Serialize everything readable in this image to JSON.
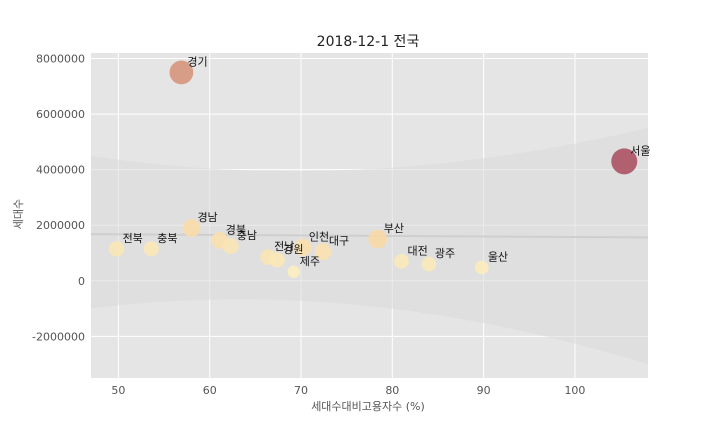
{
  "chart_data": {
    "type": "scatter",
    "title": "2018-12-1 전국",
    "xlabel": "세대수대비고용자수 (%)",
    "ylabel": "세대수",
    "xlim": [
      47,
      108
    ],
    "ylim": [
      -3500000,
      8200000
    ],
    "x_ticks": [
      "50",
      "60",
      "70",
      "80",
      "90",
      "100"
    ],
    "y_ticks": [
      "-2000000",
      "0",
      "2000000",
      "4000000",
      "6000000",
      "8000000"
    ],
    "grid": true,
    "legend": "none",
    "regression": {
      "y_at_47": 1680000,
      "y_at_108": 1560000,
      "band_upper_at_108": 5500000,
      "band_lower_at_108": -3000000
    },
    "points": [
      {
        "label": "경기",
        "x": 56.9,
        "y": 7500000,
        "size": 3300000
      },
      {
        "label": "서울",
        "x": 105.4,
        "y": 4300000,
        "size": 4300000
      },
      {
        "label": "부산",
        "x": 78.4,
        "y": 1500000,
        "size": 1500000
      },
      {
        "label": "경남",
        "x": 58.0,
        "y": 1900000,
        "size": 1300000
      },
      {
        "label": "인천",
        "x": 70.2,
        "y": 1200000,
        "size": 1150000
      },
      {
        "label": "대구",
        "x": 72.4,
        "y": 1050000,
        "size": 1000000
      },
      {
        "label": "경북",
        "x": 61.1,
        "y": 1450000,
        "size": 1050000
      },
      {
        "label": "충남",
        "x": 62.3,
        "y": 1250000,
        "size": 850000
      },
      {
        "label": "전남",
        "x": 66.4,
        "y": 850000,
        "size": 800000
      },
      {
        "label": "강원",
        "x": 67.4,
        "y": 750000,
        "size": 650000
      },
      {
        "label": "전북",
        "x": 49.8,
        "y": 1150000,
        "size": 750000
      },
      {
        "label": "충북",
        "x": 53.6,
        "y": 1150000,
        "size": 650000
      },
      {
        "label": "대전",
        "x": 81.0,
        "y": 700000,
        "size": 600000
      },
      {
        "label": "광주",
        "x": 84.0,
        "y": 600000,
        "size": 580000
      },
      {
        "label": "울산",
        "x": 89.8,
        "y": 480000,
        "size": 430000
      },
      {
        "label": "제주",
        "x": 69.2,
        "y": 320000,
        "size": 270000
      }
    ],
    "colors": {
      "low": "#fff5c4",
      "mid": "#f6c48a",
      "high": "#a84a5c",
      "background": "#e5e5e5",
      "grid": "#ffffff",
      "regression": "#cfcfcf",
      "band": "#dadada"
    }
  }
}
